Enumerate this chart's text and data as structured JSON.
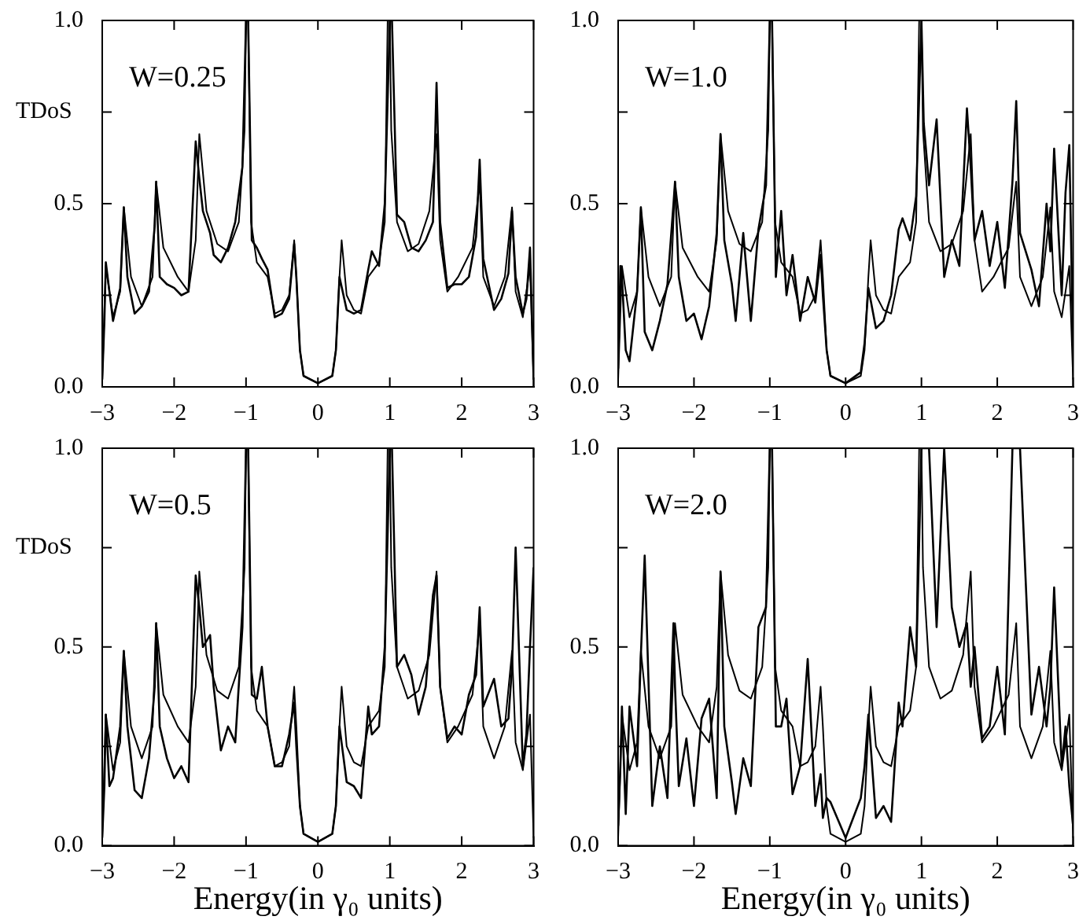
{
  "chart_data": [
    {
      "type": "line",
      "ylabel": "TDoS",
      "annotations": [
        "W=0.25"
      ],
      "xlim": [
        -3,
        3
      ],
      "ylim": [
        0,
        1
      ],
      "xticks": [
        -3,
        -2,
        -1,
        0,
        1,
        2,
        3
      ],
      "yticks": [
        {
          "value": 0,
          "label": "0.0"
        },
        {
          "value": 0.25,
          "label": null
        },
        {
          "value": 0.5,
          "label": "0.5"
        },
        {
          "value": 0.75,
          "label": null
        },
        {
          "value": 1,
          "label": "1.0"
        }
      ],
      "grid": false,
      "legend": false,
      "marker": "none",
      "series": [
        {
          "color": "#000000",
          "x": [
            -3,
            -2.95,
            -2.85,
            -2.75,
            -2.7,
            -2.6,
            -2.45,
            -2.3,
            -2.25,
            -2.15,
            -1.95,
            -1.8,
            -1.7,
            -1.65,
            -1.55,
            -1.4,
            -1.25,
            -1.1,
            -1.02,
            -1.0,
            -0.97,
            -0.93,
            -0.85,
            -0.7,
            -0.6,
            -0.5,
            -0.4,
            -0.33,
            -0.3,
            -0.25,
            -0.2,
            0,
            0.2,
            0.25,
            0.3,
            0.33,
            0.4,
            0.5,
            0.6,
            0.7,
            0.85,
            0.93,
            0.97,
            1.0,
            1.02,
            1.1,
            1.25,
            1.4,
            1.55,
            1.65,
            1.7,
            1.8,
            1.95,
            2.15,
            2.25,
            2.3,
            2.45,
            2.6,
            2.7,
            2.75,
            2.85,
            2.95,
            3
          ],
          "values": [
            0.02,
            0.33,
            0.19,
            0.26,
            0.49,
            0.3,
            0.22,
            0.3,
            0.56,
            0.38,
            0.3,
            0.26,
            0.4,
            0.69,
            0.48,
            0.39,
            0.37,
            0.45,
            0.7,
            1.0,
            1.0,
            0.45,
            0.34,
            0.3,
            0.2,
            0.21,
            0.25,
            0.4,
            0.3,
            0.1,
            0.03,
            0.01,
            0.03,
            0.1,
            0.3,
            0.4,
            0.25,
            0.21,
            0.2,
            0.3,
            0.34,
            0.45,
            1.0,
            1.0,
            0.7,
            0.45,
            0.37,
            0.39,
            0.48,
            0.69,
            0.4,
            0.26,
            0.3,
            0.38,
            0.56,
            0.3,
            0.22,
            0.3,
            0.49,
            0.26,
            0.19,
            0.33,
            0.02
          ]
        },
        {
          "color": "#000000",
          "x": [
            -3,
            -2.97,
            -2.95,
            -2.9,
            -2.85,
            -2.75,
            -2.7,
            -2.65,
            -2.55,
            -2.45,
            -2.35,
            -2.27,
            -2.25,
            -2.2,
            -2.1,
            -2.0,
            -1.9,
            -1.8,
            -1.7,
            -1.65,
            -1.6,
            -1.5,
            -1.45,
            -1.35,
            -1.25,
            -1.15,
            -1.05,
            -1.0,
            -0.97,
            -0.92,
            -0.85,
            -0.78,
            -0.7,
            -0.6,
            -0.5,
            -0.4,
            -0.33,
            -0.3,
            -0.25,
            -0.2,
            0,
            0.2,
            0.25,
            0.3,
            0.4,
            0.5,
            0.6,
            0.7,
            0.75,
            0.85,
            0.93,
            1.0,
            1.03,
            1.1,
            1.2,
            1.3,
            1.4,
            1.5,
            1.6,
            1.65,
            1.7,
            1.8,
            1.9,
            2.0,
            2.1,
            2.2,
            2.25,
            2.3,
            2.45,
            2.55,
            2.65,
            2.7,
            2.75,
            2.85,
            2.9,
            2.95,
            3
          ],
          "values": [
            0.02,
            0.18,
            0.34,
            0.26,
            0.18,
            0.27,
            0.49,
            0.3,
            0.2,
            0.22,
            0.26,
            0.44,
            0.56,
            0.3,
            0.28,
            0.27,
            0.25,
            0.26,
            0.67,
            0.57,
            0.48,
            0.42,
            0.36,
            0.34,
            0.38,
            0.45,
            0.6,
            1.0,
            1.0,
            0.4,
            0.38,
            0.35,
            0.32,
            0.19,
            0.2,
            0.24,
            0.39,
            0.3,
            0.1,
            0.03,
            0.01,
            0.03,
            0.1,
            0.3,
            0.21,
            0.2,
            0.21,
            0.32,
            0.37,
            0.33,
            0.5,
            1.0,
            1.0,
            0.47,
            0.45,
            0.38,
            0.37,
            0.4,
            0.45,
            0.83,
            0.45,
            0.27,
            0.28,
            0.28,
            0.3,
            0.41,
            0.62,
            0.35,
            0.21,
            0.24,
            0.31,
            0.48,
            0.3,
            0.2,
            0.24,
            0.38,
            0.02
          ]
        }
      ]
    },
    {
      "type": "line",
      "annotations": [
        "W=1.0"
      ],
      "xlim": [
        -3,
        3
      ],
      "ylim": [
        0,
        1
      ],
      "xticks": [
        -3,
        -2,
        -1,
        0,
        1,
        2,
        3
      ],
      "yticks": [
        {
          "value": 0,
          "label": "0.0"
        },
        {
          "value": 0.25,
          "label": null
        },
        {
          "value": 0.5,
          "label": "0.5"
        },
        {
          "value": 0.75,
          "label": null
        },
        {
          "value": 1,
          "label": "1.0"
        }
      ],
      "grid": false,
      "legend": false,
      "marker": "none",
      "series": [
        {
          "color": "#000000",
          "x": [
            -3,
            -2.95,
            -2.85,
            -2.75,
            -2.7,
            -2.6,
            -2.45,
            -2.3,
            -2.25,
            -2.15,
            -1.95,
            -1.8,
            -1.7,
            -1.65,
            -1.55,
            -1.4,
            -1.25,
            -1.1,
            -1.02,
            -1.0,
            -0.97,
            -0.93,
            -0.85,
            -0.7,
            -0.6,
            -0.5,
            -0.4,
            -0.33,
            -0.3,
            -0.25,
            -0.2,
            0,
            0.2,
            0.25,
            0.3,
            0.33,
            0.4,
            0.5,
            0.6,
            0.7,
            0.85,
            0.93,
            0.97,
            1.0,
            1.02,
            1.1,
            1.25,
            1.4,
            1.55,
            1.65,
            1.7,
            1.8,
            1.95,
            2.15,
            2.25,
            2.3,
            2.45,
            2.6,
            2.7,
            2.75,
            2.85,
            2.95,
            3
          ],
          "values": [
            0.02,
            0.33,
            0.19,
            0.26,
            0.49,
            0.3,
            0.22,
            0.3,
            0.56,
            0.38,
            0.3,
            0.26,
            0.4,
            0.69,
            0.48,
            0.39,
            0.37,
            0.45,
            0.7,
            1.0,
            1.0,
            0.45,
            0.34,
            0.3,
            0.2,
            0.21,
            0.25,
            0.4,
            0.3,
            0.1,
            0.03,
            0.01,
            0.03,
            0.1,
            0.3,
            0.4,
            0.25,
            0.21,
            0.2,
            0.3,
            0.34,
            0.45,
            1.0,
            1.0,
            0.7,
            0.45,
            0.37,
            0.39,
            0.48,
            0.69,
            0.4,
            0.26,
            0.3,
            0.38,
            0.56,
            0.3,
            0.22,
            0.3,
            0.49,
            0.26,
            0.19,
            0.33,
            0.02
          ]
        },
        {
          "color": "#000000",
          "x": [
            -3,
            -2.97,
            -2.95,
            -2.9,
            -2.85,
            -2.75,
            -2.7,
            -2.65,
            -2.55,
            -2.45,
            -2.35,
            -2.27,
            -2.25,
            -2.2,
            -2.1,
            -2.0,
            -1.9,
            -1.8,
            -1.7,
            -1.65,
            -1.6,
            -1.5,
            -1.45,
            -1.35,
            -1.25,
            -1.15,
            -1.05,
            -1.0,
            -0.97,
            -0.92,
            -0.85,
            -0.78,
            -0.7,
            -0.6,
            -0.5,
            -0.4,
            -0.33,
            -0.3,
            -0.25,
            -0.2,
            0,
            0.2,
            0.25,
            0.3,
            0.4,
            0.5,
            0.6,
            0.7,
            0.75,
            0.85,
            0.93,
            1.0,
            1.03,
            1.1,
            1.2,
            1.3,
            1.4,
            1.5,
            1.6,
            1.65,
            1.7,
            1.8,
            1.9,
            2.0,
            2.1,
            2.2,
            2.25,
            2.3,
            2.45,
            2.55,
            2.65,
            2.7,
            2.75,
            2.85,
            2.9,
            2.95,
            3
          ],
          "values": [
            0.05,
            0.33,
            0.3,
            0.1,
            0.07,
            0.26,
            0.49,
            0.15,
            0.1,
            0.18,
            0.28,
            0.5,
            0.56,
            0.3,
            0.18,
            0.2,
            0.13,
            0.22,
            0.42,
            0.69,
            0.4,
            0.28,
            0.18,
            0.42,
            0.18,
            0.43,
            0.55,
            1.0,
            1.0,
            0.3,
            0.48,
            0.25,
            0.36,
            0.18,
            0.3,
            0.23,
            0.36,
            0.25,
            0.1,
            0.03,
            0.01,
            0.04,
            0.12,
            0.27,
            0.16,
            0.18,
            0.25,
            0.43,
            0.46,
            0.4,
            0.52,
            1.0,
            0.72,
            0.55,
            0.73,
            0.3,
            0.4,
            0.33,
            0.76,
            0.6,
            0.4,
            0.48,
            0.33,
            0.45,
            0.27,
            0.56,
            0.78,
            0.42,
            0.32,
            0.22,
            0.5,
            0.37,
            0.65,
            0.25,
            0.53,
            0.66,
            0.1
          ]
        }
      ]
    },
    {
      "type": "line",
      "ylabel": "TDoS",
      "xlabel": "Energy(in γ₀ units)",
      "annotations": [
        "W=0.5"
      ],
      "xlim": [
        -3,
        3
      ],
      "ylim": [
        0,
        1
      ],
      "xticks": [
        -3,
        -2,
        -1,
        0,
        1,
        2,
        3
      ],
      "yticks": [
        {
          "value": 0,
          "label": "0.0"
        },
        {
          "value": 0.25,
          "label": null
        },
        {
          "value": 0.5,
          "label": "0.5"
        },
        {
          "value": 0.75,
          "label": null
        },
        {
          "value": 1,
          "label": "1.0"
        }
      ],
      "grid": false,
      "legend": false,
      "marker": "none",
      "series": [
        {
          "color": "#000000",
          "x": [
            -3,
            -2.95,
            -2.85,
            -2.75,
            -2.7,
            -2.6,
            -2.45,
            -2.3,
            -2.25,
            -2.15,
            -1.95,
            -1.8,
            -1.7,
            -1.65,
            -1.55,
            -1.4,
            -1.25,
            -1.1,
            -1.02,
            -1.0,
            -0.97,
            -0.93,
            -0.85,
            -0.7,
            -0.6,
            -0.5,
            -0.4,
            -0.33,
            -0.3,
            -0.25,
            -0.2,
            0,
            0.2,
            0.25,
            0.3,
            0.33,
            0.4,
            0.5,
            0.6,
            0.7,
            0.85,
            0.93,
            0.97,
            1.0,
            1.02,
            1.1,
            1.25,
            1.4,
            1.55,
            1.65,
            1.7,
            1.8,
            1.95,
            2.15,
            2.25,
            2.3,
            2.45,
            2.6,
            2.7,
            2.75,
            2.85,
            2.95,
            3
          ],
          "values": [
            0.02,
            0.33,
            0.19,
            0.26,
            0.49,
            0.3,
            0.22,
            0.3,
            0.56,
            0.38,
            0.3,
            0.26,
            0.4,
            0.69,
            0.48,
            0.39,
            0.37,
            0.45,
            0.7,
            1.0,
            1.0,
            0.45,
            0.34,
            0.3,
            0.2,
            0.21,
            0.25,
            0.4,
            0.3,
            0.1,
            0.03,
            0.01,
            0.03,
            0.1,
            0.3,
            0.4,
            0.25,
            0.21,
            0.2,
            0.3,
            0.34,
            0.45,
            1.0,
            1.0,
            0.7,
            0.45,
            0.37,
            0.39,
            0.48,
            0.69,
            0.4,
            0.26,
            0.3,
            0.38,
            0.56,
            0.3,
            0.22,
            0.3,
            0.49,
            0.26,
            0.19,
            0.33,
            0.02
          ]
        },
        {
          "color": "#000000",
          "x": [
            -3,
            -2.97,
            -2.95,
            -2.9,
            -2.85,
            -2.75,
            -2.7,
            -2.65,
            -2.55,
            -2.45,
            -2.35,
            -2.27,
            -2.25,
            -2.2,
            -2.1,
            -2.0,
            -1.9,
            -1.8,
            -1.7,
            -1.65,
            -1.6,
            -1.5,
            -1.45,
            -1.35,
            -1.25,
            -1.15,
            -1.05,
            -1.0,
            -0.97,
            -0.92,
            -0.85,
            -0.78,
            -0.7,
            -0.6,
            -0.5,
            -0.4,
            -0.33,
            -0.3,
            -0.25,
            -0.2,
            0,
            0.2,
            0.25,
            0.3,
            0.4,
            0.5,
            0.6,
            0.7,
            0.75,
            0.85,
            0.93,
            1.0,
            1.03,
            1.1,
            1.2,
            1.3,
            1.4,
            1.5,
            1.6,
            1.65,
            1.7,
            1.8,
            1.9,
            2.0,
            2.1,
            2.2,
            2.25,
            2.3,
            2.45,
            2.55,
            2.65,
            2.7,
            2.75,
            2.85,
            2.9,
            2.95,
            3
          ],
          "values": [
            0.02,
            0.15,
            0.33,
            0.15,
            0.17,
            0.3,
            0.49,
            0.3,
            0.14,
            0.12,
            0.22,
            0.4,
            0.56,
            0.3,
            0.22,
            0.17,
            0.2,
            0.16,
            0.68,
            0.6,
            0.5,
            0.53,
            0.4,
            0.24,
            0.3,
            0.26,
            0.55,
            1.0,
            1.0,
            0.38,
            0.37,
            0.45,
            0.3,
            0.2,
            0.2,
            0.28,
            0.36,
            0.25,
            0.1,
            0.03,
            0.01,
            0.03,
            0.1,
            0.3,
            0.16,
            0.15,
            0.12,
            0.35,
            0.28,
            0.3,
            0.5,
            1.0,
            1.0,
            0.45,
            0.48,
            0.43,
            0.33,
            0.4,
            0.63,
            0.68,
            0.4,
            0.27,
            0.3,
            0.28,
            0.38,
            0.43,
            0.6,
            0.35,
            0.42,
            0.3,
            0.32,
            0.45,
            0.75,
            0.2,
            0.28,
            0.5,
            0.7
          ]
        }
      ]
    },
    {
      "type": "line",
      "xlabel": "Energy(in γ₀ units)",
      "annotations": [
        "W=2.0"
      ],
      "xlim": [
        -3,
        3
      ],
      "ylim": [
        0,
        1
      ],
      "xticks": [
        -3,
        -2,
        -1,
        0,
        1,
        2,
        3
      ],
      "yticks": [
        {
          "value": 0,
          "label": "0.0"
        },
        {
          "value": 0.25,
          "label": null
        },
        {
          "value": 0.5,
          "label": "0.5"
        },
        {
          "value": 0.75,
          "label": null
        },
        {
          "value": 1,
          "label": "1.0"
        }
      ],
      "grid": false,
      "legend": false,
      "marker": "none",
      "series": [
        {
          "color": "#000000",
          "x": [
            -3,
            -2.95,
            -2.85,
            -2.75,
            -2.7,
            -2.6,
            -2.45,
            -2.3,
            -2.25,
            -2.15,
            -1.95,
            -1.8,
            -1.7,
            -1.65,
            -1.55,
            -1.4,
            -1.25,
            -1.1,
            -1.02,
            -1.0,
            -0.97,
            -0.93,
            -0.85,
            -0.7,
            -0.6,
            -0.5,
            -0.4,
            -0.33,
            -0.3,
            -0.25,
            -0.2,
            0,
            0.2,
            0.25,
            0.3,
            0.33,
            0.4,
            0.5,
            0.6,
            0.7,
            0.85,
            0.93,
            0.97,
            1.0,
            1.02,
            1.1,
            1.25,
            1.4,
            1.55,
            1.65,
            1.7,
            1.8,
            1.95,
            2.15,
            2.25,
            2.3,
            2.45,
            2.6,
            2.7,
            2.75,
            2.85,
            2.95,
            3
          ],
          "values": [
            0.02,
            0.33,
            0.19,
            0.26,
            0.49,
            0.3,
            0.22,
            0.3,
            0.56,
            0.38,
            0.3,
            0.26,
            0.4,
            0.69,
            0.48,
            0.39,
            0.37,
            0.45,
            0.7,
            1.0,
            1.0,
            0.45,
            0.34,
            0.3,
            0.2,
            0.21,
            0.25,
            0.4,
            0.3,
            0.1,
            0.03,
            0.01,
            0.03,
            0.1,
            0.3,
            0.4,
            0.25,
            0.21,
            0.2,
            0.3,
            0.34,
            0.45,
            1.0,
            1.0,
            0.7,
            0.45,
            0.37,
            0.39,
            0.48,
            0.69,
            0.4,
            0.26,
            0.3,
            0.38,
            0.56,
            0.3,
            0.22,
            0.3,
            0.49,
            0.26,
            0.19,
            0.33,
            0.02
          ]
        },
        {
          "color": "#000000",
          "x": [
            -3,
            -2.97,
            -2.95,
            -2.9,
            -2.85,
            -2.75,
            -2.7,
            -2.65,
            -2.55,
            -2.45,
            -2.35,
            -2.27,
            -2.25,
            -2.2,
            -2.1,
            -2.0,
            -1.9,
            -1.8,
            -1.7,
            -1.65,
            -1.6,
            -1.5,
            -1.45,
            -1.35,
            -1.25,
            -1.15,
            -1.05,
            -1.0,
            -0.97,
            -0.92,
            -0.85,
            -0.78,
            -0.7,
            -0.6,
            -0.5,
            -0.4,
            -0.33,
            -0.3,
            -0.25,
            -0.2,
            0,
            0.2,
            0.25,
            0.3,
            0.4,
            0.5,
            0.6,
            0.7,
            0.75,
            0.85,
            0.93,
            1.0,
            1.03,
            1.1,
            1.2,
            1.3,
            1.4,
            1.5,
            1.6,
            1.65,
            1.7,
            1.8,
            1.9,
            2.0,
            2.1,
            2.2,
            2.25,
            2.3,
            2.45,
            2.55,
            2.65,
            2.7,
            2.75,
            2.85,
            2.9,
            2.95,
            3
          ],
          "values": [
            0.05,
            0.2,
            0.35,
            0.08,
            0.35,
            0.2,
            0.48,
            0.73,
            0.1,
            0.25,
            0.12,
            0.56,
            0.4,
            0.15,
            0.27,
            0.1,
            0.32,
            0.37,
            0.12,
            0.69,
            0.3,
            0.16,
            0.08,
            0.22,
            0.15,
            0.55,
            0.6,
            1.0,
            1.0,
            0.3,
            0.3,
            0.37,
            0.13,
            0.2,
            0.47,
            0.1,
            0.18,
            0.07,
            0.12,
            0.11,
            0.02,
            0.12,
            0.2,
            0.33,
            0.07,
            0.1,
            0.06,
            0.36,
            0.3,
            0.55,
            0.45,
            1.0,
            1.0,
            1.0,
            0.55,
            1.0,
            0.6,
            0.5,
            0.56,
            0.4,
            0.5,
            0.27,
            0.3,
            0.45,
            0.28,
            1.0,
            1.0,
            1.0,
            0.33,
            0.45,
            0.3,
            0.4,
            0.65,
            0.2,
            0.3,
            0.15,
            0.05
          ]
        }
      ]
    }
  ]
}
